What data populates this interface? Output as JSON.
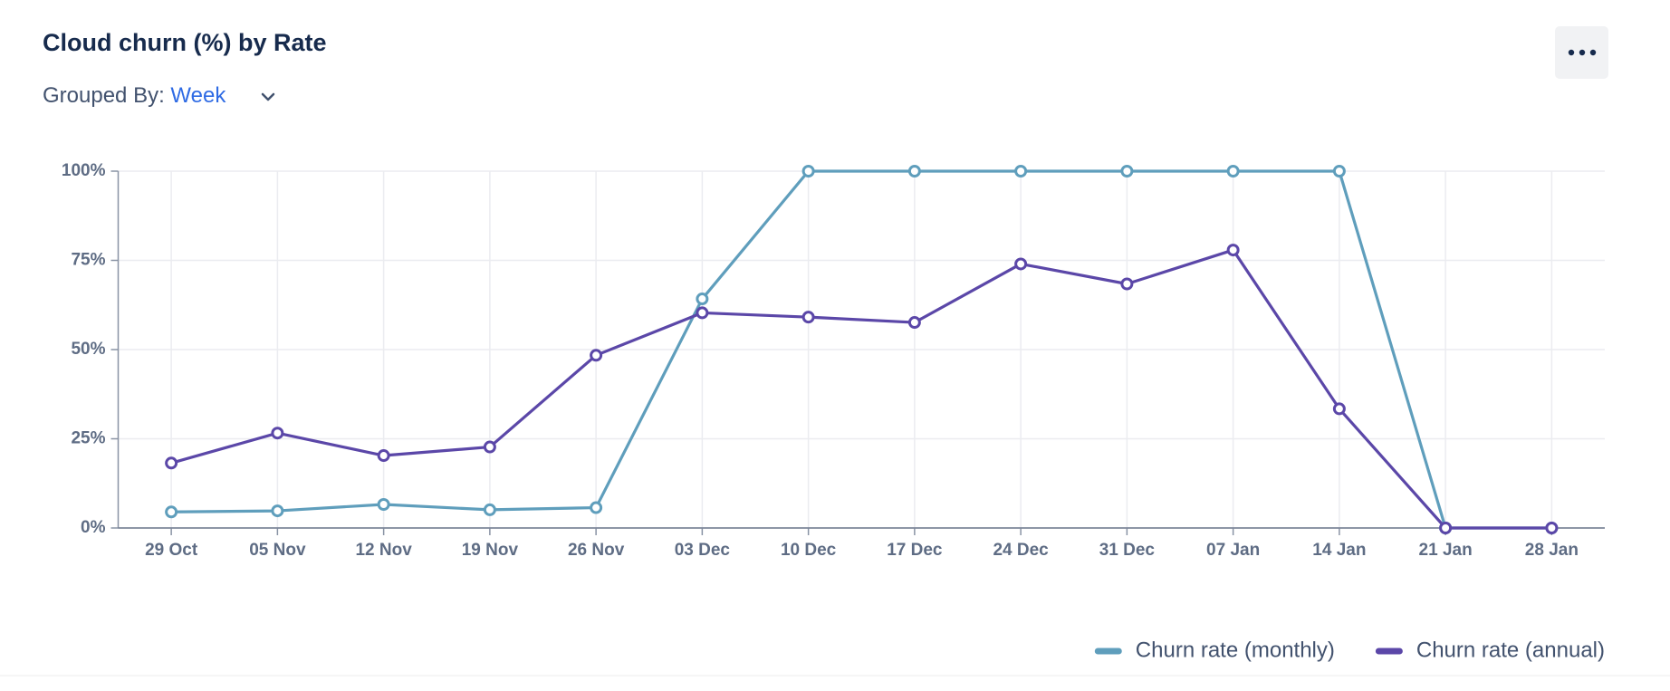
{
  "header": {
    "title": "Cloud churn (%) by Rate",
    "grouped_by_label": "Grouped By:",
    "grouped_by_value": "Week"
  },
  "chart_data": {
    "type": "line",
    "categories": [
      "29 Oct",
      "05 Nov",
      "12 Nov",
      "19 Nov",
      "26 Nov",
      "03 Dec",
      "10 Dec",
      "17 Dec",
      "24 Dec",
      "31 Dec",
      "07 Jan",
      "14 Jan",
      "21 Jan",
      "28 Jan"
    ],
    "series": [
      {
        "name": "Churn rate (monthly)",
        "color": "#5f9ebc",
        "values": [
          4.5,
          4.8,
          6.6,
          5.1,
          5.7,
          64.2,
          100,
          100,
          100,
          100,
          100,
          100,
          0,
          0
        ]
      },
      {
        "name": "Churn rate (annual)",
        "color": "#5b47a8",
        "values": [
          18.2,
          26.6,
          20.3,
          22.7,
          48.4,
          60.3,
          59.1,
          57.6,
          74.0,
          68.4,
          77.9,
          33.4,
          0,
          0
        ]
      }
    ],
    "ylim": [
      0,
      100
    ],
    "yticks": [
      {
        "value": 0,
        "label": "0%"
      },
      {
        "value": 25,
        "label": "25%"
      },
      {
        "value": 50,
        "label": "50%"
      },
      {
        "value": 75,
        "label": "75%"
      },
      {
        "value": 100,
        "label": "100%"
      }
    ],
    "grid": true,
    "legend": "bottom-right"
  }
}
